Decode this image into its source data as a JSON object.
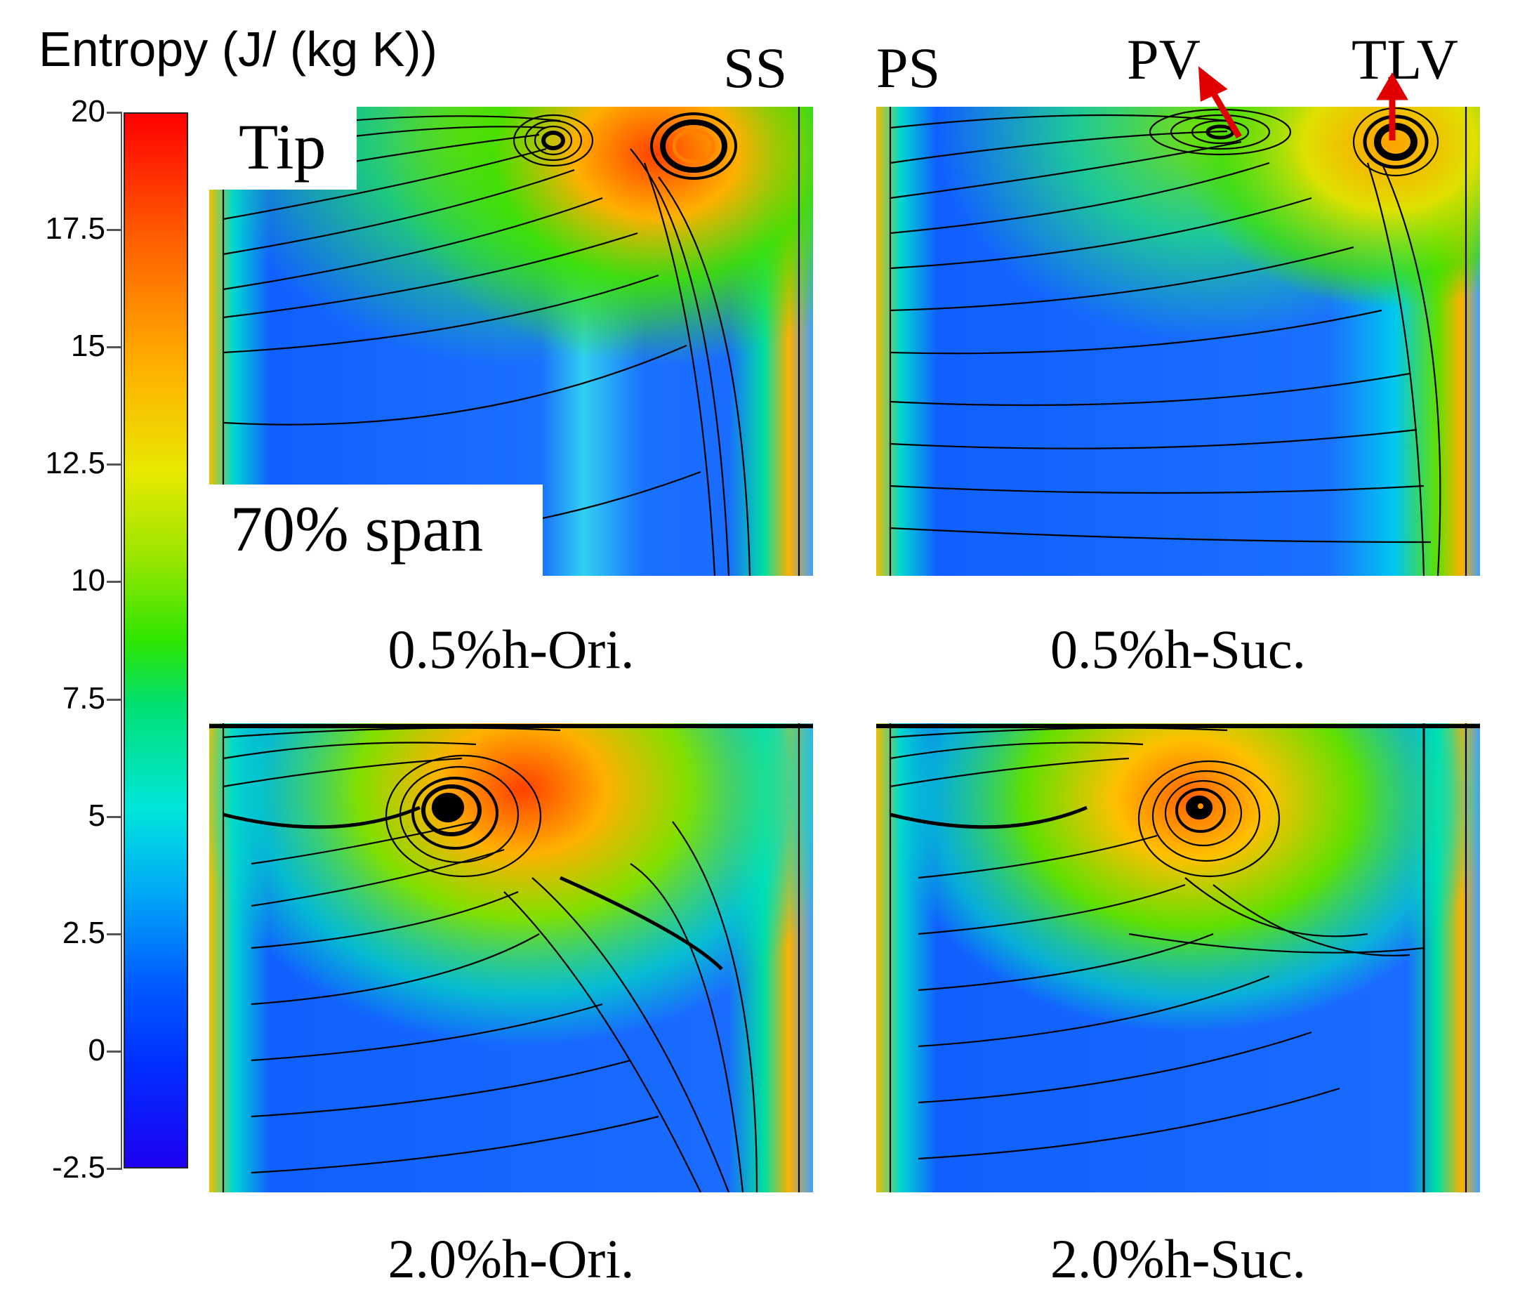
{
  "colorbar": {
    "title": "Entropy (J/ (kg K))",
    "ticks": [
      "20",
      "17.5",
      "15",
      "12.5",
      "10",
      "7.5",
      "5",
      "2.5",
      "0",
      "-2.5"
    ],
    "range": [
      -2.5,
      20
    ],
    "colors": {
      "high": "#ff0000",
      "mid": "#00e6dc",
      "low": "#1c00f0"
    }
  },
  "labels": {
    "ss": "SS",
    "ps": "PS",
    "pv": "PV",
    "tlv": "TLV",
    "tip": "Tip",
    "span": "70% span"
  },
  "panels": [
    {
      "caption": "0.5%h-Ori."
    },
    {
      "caption": "0.5%h-Suc."
    },
    {
      "caption": "2.0%h-Ori."
    },
    {
      "caption": "2.0%h-Suc."
    }
  ],
  "arrow_color": "#e00000"
}
